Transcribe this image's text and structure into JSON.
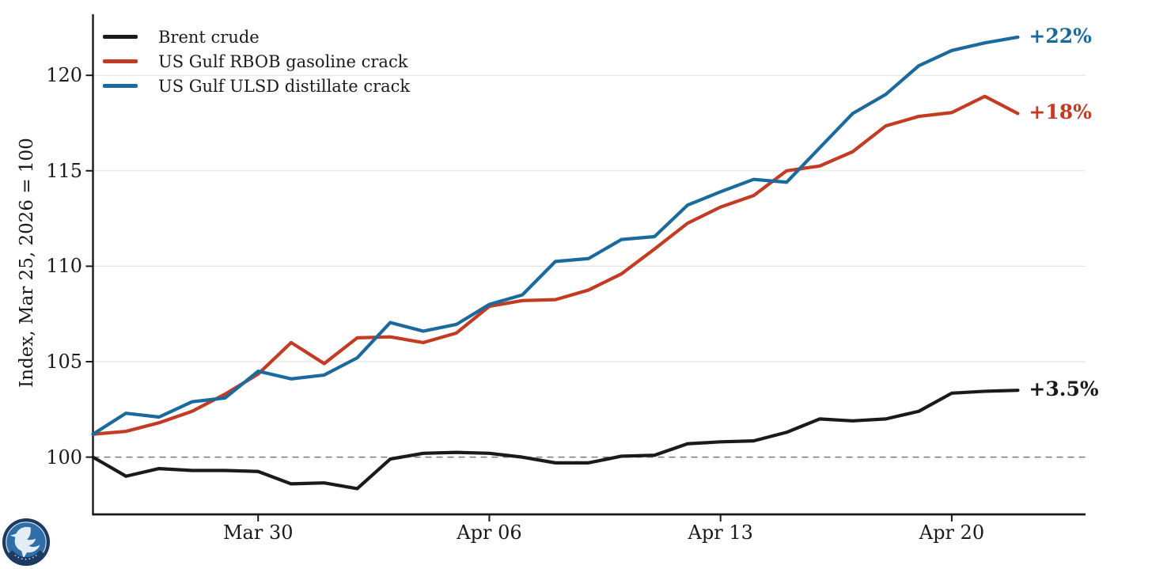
{
  "page": {
    "background": "#ffffff"
  },
  "chart_data": {
    "type": "line",
    "ylabel": "Index, Mar 25, 2026 = 100",
    "x_dates": [
      "Mar 25",
      "Mar 26",
      "Mar 27",
      "Mar 28",
      "Mar 29",
      "Mar 30",
      "Mar 31",
      "Apr 01",
      "Apr 02",
      "Apr 03",
      "Apr 04",
      "Apr 05",
      "Apr 06",
      "Apr 07",
      "Apr 08",
      "Apr 09",
      "Apr 10",
      "Apr 11",
      "Apr 12",
      "Apr 13",
      "Apr 14",
      "Apr 15",
      "Apr 16",
      "Apr 17",
      "Apr 18",
      "Apr 19",
      "Apr 20",
      "Apr 21",
      "Apr 22"
    ],
    "xtick_indices": [
      5,
      12,
      19,
      26
    ],
    "xtick_labels": [
      "Mar 30",
      "Apr 06",
      "Apr 13",
      "Apr 20"
    ],
    "ytick_values": [
      100,
      105,
      110,
      115,
      120
    ],
    "ytick_labels": [
      "100",
      "105",
      "110",
      "115",
      "120"
    ],
    "ylim": [
      97.0,
      123.2
    ],
    "baseline_value": 100,
    "grid": "horizontal",
    "legend_position": "top-left",
    "series": [
      {
        "name": "Brent crude",
        "color": "#1a1a1a",
        "end_label": "+3.5%",
        "values": [
          100.0,
          99.0,
          99.4,
          99.3,
          99.3,
          99.25,
          98.6,
          98.65,
          98.35,
          99.9,
          100.2,
          100.25,
          100.2,
          100.0,
          99.7,
          99.7,
          100.05,
          100.1,
          100.7,
          100.8,
          100.85,
          101.3,
          102.0,
          101.9,
          102.0,
          102.4,
          103.35,
          103.45,
          103.5
        ]
      },
      {
        "name": "US Gulf RBOB gasoline crack",
        "color": "#c23b22",
        "end_label": "+18%",
        "values": [
          101.2,
          101.35,
          101.8,
          102.4,
          103.3,
          104.35,
          106.0,
          104.9,
          106.25,
          106.3,
          106.0,
          106.5,
          107.9,
          108.2,
          108.25,
          108.75,
          109.6,
          110.9,
          112.25,
          113.1,
          113.7,
          115.0,
          115.25,
          116.0,
          117.35,
          117.85,
          118.05,
          118.9,
          118.0
        ]
      },
      {
        "name": "US Gulf ULSD distillate crack",
        "color": "#1a6a9d",
        "end_label": "+22%",
        "values": [
          101.2,
          102.3,
          102.1,
          102.9,
          103.1,
          104.5,
          104.1,
          104.3,
          105.2,
          107.05,
          106.6,
          106.95,
          108.0,
          108.5,
          110.25,
          110.4,
          111.4,
          111.55,
          113.2,
          113.9,
          114.55,
          114.4,
          116.2,
          118.0,
          119.0,
          120.5,
          121.3,
          121.7,
          122.0
        ]
      }
    ],
    "styles": {
      "grid_color": "#e4e4e4",
      "baseline_color": "#7a7a7a",
      "axis_color": "#1a1a1a",
      "logo_navy": "#1c3b61",
      "logo_blue": "#2f6ea6",
      "logo_light": "#e4edf5"
    }
  },
  "branding": {
    "logo_icon": "eagle-emblem"
  }
}
